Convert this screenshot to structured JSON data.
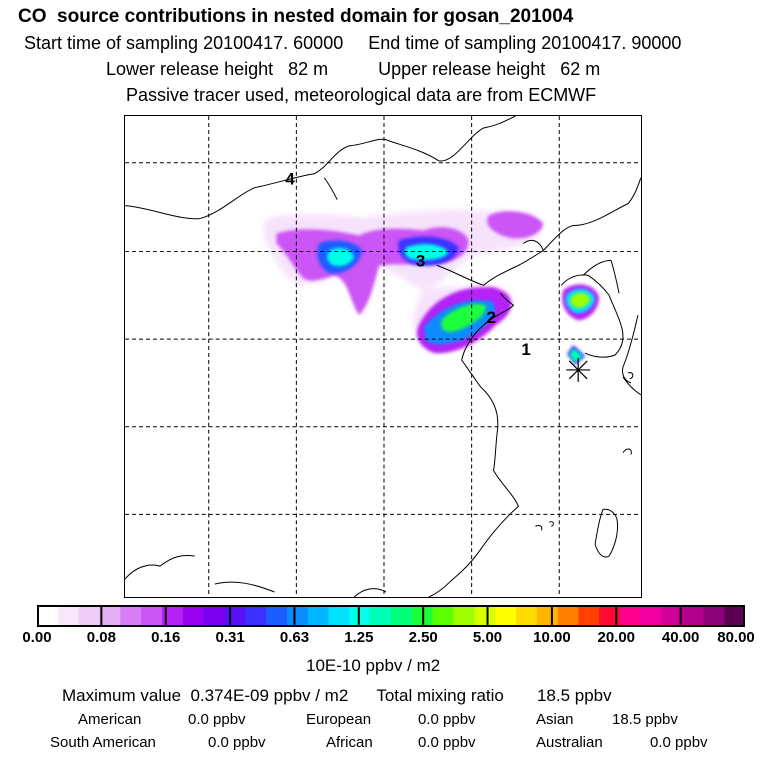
{
  "header": {
    "title": "CO  source contributions in nested domain for gosan_201004",
    "sampling": "Start time of sampling 20100417. 60000     End time of sampling 20100417. 90000",
    "release": "Lower release height   82 m          Upper release height   62 m",
    "tracer": "Passive tracer used, meteorological data are from ECMWF"
  },
  "map": {
    "region_labels": [
      "4",
      "3",
      "2",
      "1"
    ]
  },
  "colorbar": {
    "tick_labels": [
      "0.00",
      "0.08",
      "0.16",
      "0.31",
      "0.63",
      "1.25",
      "2.50",
      "5.00",
      "10.00",
      "20.00",
      "40.00",
      "80.00"
    ],
    "colors": [
      "#ffffff",
      "#f8e6fb",
      "#f0ccf8",
      "#e6b0f6",
      "#d97cf6",
      "#cc55f5",
      "#b522f5",
      "#9a00f0",
      "#7a00f0",
      "#5a10f5",
      "#3a30ff",
      "#1a5cff",
      "#0a8cff",
      "#00b6ff",
      "#00e2ff",
      "#00ffe6",
      "#00ffb4",
      "#00ff78",
      "#1aff3c",
      "#5cff00",
      "#a0ff00",
      "#d8ff00",
      "#ffff00",
      "#ffdc00",
      "#ffb400",
      "#ff8000",
      "#ff4000",
      "#ff0a32",
      "#ff008c",
      "#f000a0",
      "#d2009a",
      "#b4008c",
      "#8c0078",
      "#5a0050"
    ],
    "units": "10E-10 ppbv / m2"
  },
  "summary": {
    "max_line": "Maximum value  0.374E-09 ppbv / m2      Total mixing ratio       18.5 ppbv",
    "american_label": "American",
    "american_value": "0.0 ppbv",
    "european_label": "European",
    "european_value": "0.0 ppbv",
    "asian_label": "Asian",
    "asian_value": "18.5 ppbv",
    "south_american_label": "South American",
    "south_american_value": "0.0 ppbv",
    "african_label": "African",
    "african_value": "0.0 ppbv",
    "australian_label": "Australian",
    "australian_value": "0.0 ppbv"
  }
}
